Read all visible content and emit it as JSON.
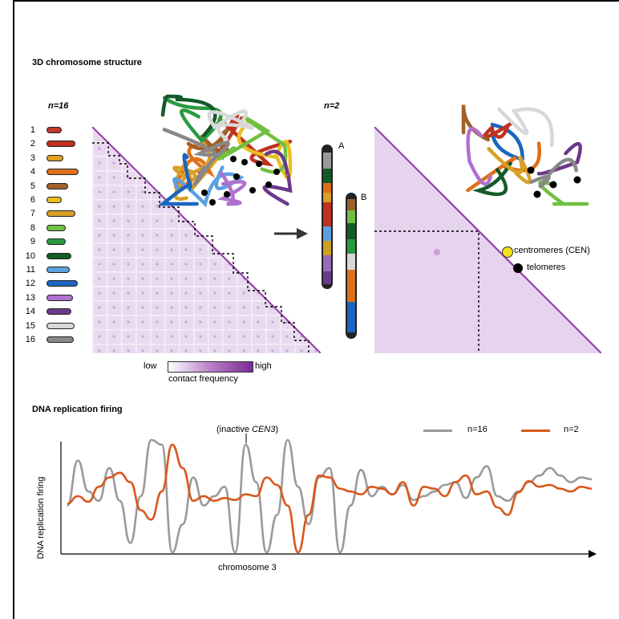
{
  "section1": {
    "title": "3D chromosome structure",
    "panel_left_label": "n=16",
    "panel_right_label": "n=2",
    "chromosomes": [
      {
        "num": "1",
        "color": "#c0392b",
        "len": 0.3
      },
      {
        "num": "2",
        "color": "#c0311e",
        "len": 0.85
      },
      {
        "num": "3",
        "color": "#e0a020",
        "len": 0.35
      },
      {
        "num": "4",
        "color": "#e07018",
        "len": 1.0
      },
      {
        "num": "5",
        "color": "#a0602a",
        "len": 0.55
      },
      {
        "num": "6",
        "color": "#e8c020",
        "len": 0.3
      },
      {
        "num": "7",
        "color": "#d8a028",
        "len": 0.85
      },
      {
        "num": "8",
        "color": "#70c040",
        "len": 0.45
      },
      {
        "num": "9",
        "color": "#2a9a40",
        "len": 0.45
      },
      {
        "num": "10",
        "color": "#145a28",
        "len": 0.7
      },
      {
        "num": "11",
        "color": "#5ca0e0",
        "len": 0.62
      },
      {
        "num": "12",
        "color": "#1a66c0",
        "len": 0.95
      },
      {
        "num": "13",
        "color": "#b070d0",
        "len": 0.75
      },
      {
        "num": "14",
        "color": "#6a3a8a",
        "len": 0.7
      },
      {
        "num": "15",
        "color": "#d8d8d8",
        "len": 0.82
      },
      {
        "num": "16",
        "color": "#888888",
        "len": 0.8
      }
    ],
    "fused_A_label": "A",
    "fused_B_label": "B",
    "colorbar_low": "low",
    "colorbar_high": "high",
    "colorbar_title": "contact frequency",
    "legend_cen": "centromeres (CEN)",
    "legend_tel": "telomeres"
  },
  "section2": {
    "title": "DNA replication firing",
    "annotation": "(inactive ",
    "annotation_italic": "CEN3",
    "annotation_close": ")",
    "ylabel": "DNA replication firing",
    "xlabel": "chromosome 3",
    "legend": [
      {
        "name": "n=16",
        "color": "#9a9a9a"
      },
      {
        "name": "n=2",
        "color": "#d9581c"
      }
    ]
  },
  "chart_data": {
    "type": "line",
    "title": "DNA replication firing",
    "xlabel": "chromosome 3",
    "ylabel": "DNA replication firing",
    "x": [
      0,
      0.02,
      0.04,
      0.06,
      0.08,
      0.1,
      0.12,
      0.14,
      0.16,
      0.18,
      0.2,
      0.22,
      0.24,
      0.26,
      0.28,
      0.3,
      0.32,
      0.34,
      0.36,
      0.38,
      0.4,
      0.42,
      0.44,
      0.46,
      0.48,
      0.5,
      0.52,
      0.54,
      0.56,
      0.58,
      0.6,
      0.62,
      0.64,
      0.66,
      0.68,
      0.7,
      0.72,
      0.74,
      0.76,
      0.78,
      0.8,
      0.82,
      0.84,
      0.86,
      0.88,
      0.9,
      0.92,
      0.94,
      0.96,
      0.98,
      1.0
    ],
    "series": [
      {
        "name": "n=16",
        "color": "#9a9a9a",
        "values": [
          0.3,
          0.78,
          0.45,
          0.35,
          0.7,
          0.35,
          -0.1,
          0.4,
          1.0,
          0.95,
          -0.2,
          0.1,
          0.6,
          0.3,
          0.4,
          0.5,
          -0.3,
          0.95,
          0.55,
          -0.5,
          0.2,
          1.2,
          0.5,
          0.1,
          0.6,
          0.7,
          -0.45,
          0.3,
          0.68,
          0.4,
          0.5,
          0.42,
          0.52,
          0.36,
          0.4,
          0.45,
          0.52,
          0.55,
          0.38,
          0.6,
          0.72,
          0.4,
          0.35,
          0.45,
          0.55,
          0.62,
          0.7,
          0.62,
          0.55,
          0.6,
          0.58
        ]
      },
      {
        "name": "n=2",
        "color": "#d9581c",
        "values": [
          0.32,
          0.4,
          0.34,
          0.5,
          0.6,
          0.65,
          0.55,
          0.25,
          0.15,
          0.45,
          0.95,
          0.7,
          0.35,
          0.4,
          0.35,
          0.38,
          0.36,
          0.42,
          0.4,
          0.6,
          0.52,
          0.3,
          -0.5,
          0.2,
          0.62,
          0.6,
          0.48,
          0.45,
          0.42,
          0.5,
          0.48,
          0.42,
          0.55,
          0.3,
          0.5,
          0.48,
          0.4,
          0.55,
          0.62,
          0.42,
          0.45,
          0.28,
          0.2,
          0.44,
          0.56,
          0.5,
          0.52,
          0.48,
          0.45,
          0.5,
          0.48
        ]
      }
    ]
  }
}
